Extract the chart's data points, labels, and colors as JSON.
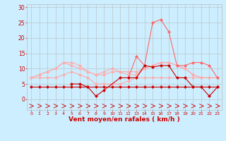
{
  "x": [
    0,
    1,
    2,
    3,
    4,
    5,
    6,
    7,
    8,
    9,
    10,
    11,
    12,
    13,
    14,
    15,
    16,
    17,
    18,
    19,
    20,
    21,
    22,
    23
  ],
  "line1": [
    4,
    4,
    4,
    4,
    4,
    4,
    4,
    4,
    4,
    4,
    4,
    4,
    4,
    4,
    4,
    4,
    4,
    4,
    4,
    4,
    4,
    4,
    4,
    4
  ],
  "line2": [
    7,
    7,
    7,
    7,
    8,
    9,
    8,
    7,
    5,
    5,
    5,
    5,
    6,
    7,
    7,
    7,
    7,
    7,
    7,
    7,
    7,
    7,
    7,
    7
  ],
  "line3": [
    7,
    8,
    9,
    10,
    12,
    12,
    11,
    9,
    8,
    9,
    10,
    9,
    9,
    9,
    10,
    11,
    12,
    12,
    11,
    10,
    8,
    7,
    7,
    7
  ],
  "line4": [
    7,
    8,
    9,
    10,
    12,
    11,
    10,
    9,
    8,
    8,
    9,
    9,
    8,
    8,
    10,
    11,
    12,
    12,
    11,
    10,
    8,
    7,
    7,
    7
  ],
  "line5": [
    null,
    null,
    null,
    null,
    null,
    null,
    null,
    null,
    null,
    null,
    null,
    null,
    7,
    14,
    11,
    25,
    26,
    22,
    11,
    11,
    12,
    12,
    11,
    7
  ],
  "line6": [
    null,
    null,
    null,
    null,
    null,
    5,
    5,
    4,
    1,
    3,
    null,
    7,
    7,
    7,
    11,
    10.5,
    11,
    11,
    7,
    7,
    4,
    4,
    1,
    4
  ],
  "bg_color": "#cceeff",
  "grid_color": "#bbbbbb",
  "line1_color": "#cc0000",
  "line2_color": "#ffaaaa",
  "line3_color": "#ffaaaa",
  "line4_color": "#ffaaaa",
  "line5_color": "#ff6666",
  "line6_color": "#cc0000",
  "arrow_color": "#cc0000",
  "xlabel": "Vent moyen/en rafales ( km/h )",
  "xlabel_color": "#cc0000",
  "tick_color": "#cc0000",
  "ylim": [
    -3.5,
    31
  ],
  "xlim": [
    -0.5,
    23.5
  ],
  "yticks": [
    0,
    5,
    10,
    15,
    20,
    25,
    30
  ],
  "xticks": [
    0,
    1,
    2,
    3,
    4,
    5,
    6,
    7,
    8,
    9,
    10,
    11,
    12,
    13,
    14,
    15,
    16,
    17,
    18,
    19,
    20,
    21,
    22,
    23
  ]
}
